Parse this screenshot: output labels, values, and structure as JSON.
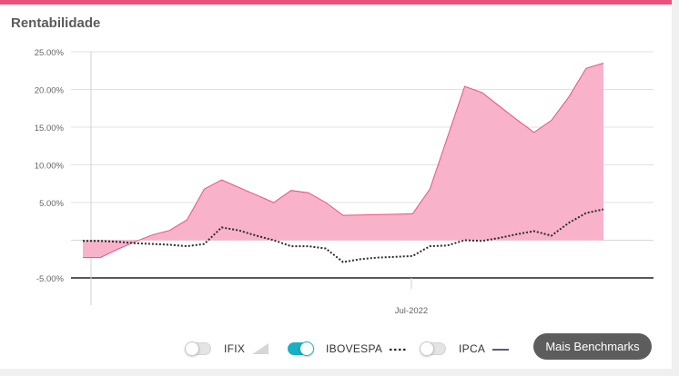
{
  "panel": {
    "title": "Rentabilidade"
  },
  "legend": [
    {
      "label": "IFIX",
      "enabled": false,
      "icon": "area-swatch-icon"
    },
    {
      "label": "IBOVESPA",
      "enabled": true,
      "icon": "dotted-line-icon"
    },
    {
      "label": "IPCA",
      "enabled": false,
      "icon": "solid-line-icon"
    }
  ],
  "more_button": "Mais Benchmarks",
  "colors": {
    "accent": "#e8527f",
    "fund_fill": "#f8b3cb",
    "fund_stroke": "#e8527f",
    "ibovespa_line": "#2b2b2b",
    "toggle_on": "#1ab0c4"
  },
  "chart_data": {
    "type": "area",
    "y_ticks": [
      "25.00%",
      "20.00%",
      "15.00%",
      "10.00%",
      "5.00%",
      "-5.00%"
    ],
    "ylim": [
      -5,
      25
    ],
    "x_tick_labels": [
      "Jul-2022"
    ],
    "grid": true,
    "series": [
      {
        "style": "area",
        "values": [
          -2.3,
          -2.3,
          -1.2,
          -0.2,
          0.7,
          1.3,
          2.7,
          6.8,
          8.0,
          7.0,
          6.0,
          5.0,
          6.6,
          6.3,
          5.0,
          3.3,
          3.35,
          3.4,
          3.45,
          3.5,
          6.8,
          13.6,
          20.4,
          19.6,
          17.8,
          16.0,
          14.3,
          15.9,
          19.0,
          22.8,
          23.5
        ]
      },
      {
        "name": "IBOVESPA",
        "style": "dotted",
        "values": [
          -0.1,
          -0.1,
          -0.2,
          -0.4,
          -0.5,
          -0.6,
          -0.8,
          -0.5,
          1.7,
          1.3,
          0.6,
          0.0,
          -0.8,
          -0.8,
          -1.1,
          -2.9,
          -2.5,
          -2.3,
          -2.2,
          -2.1,
          -0.8,
          -0.7,
          0.0,
          -0.1,
          0.3,
          0.8,
          1.2,
          0.6,
          2.3,
          3.6,
          4.1
        ]
      }
    ]
  }
}
